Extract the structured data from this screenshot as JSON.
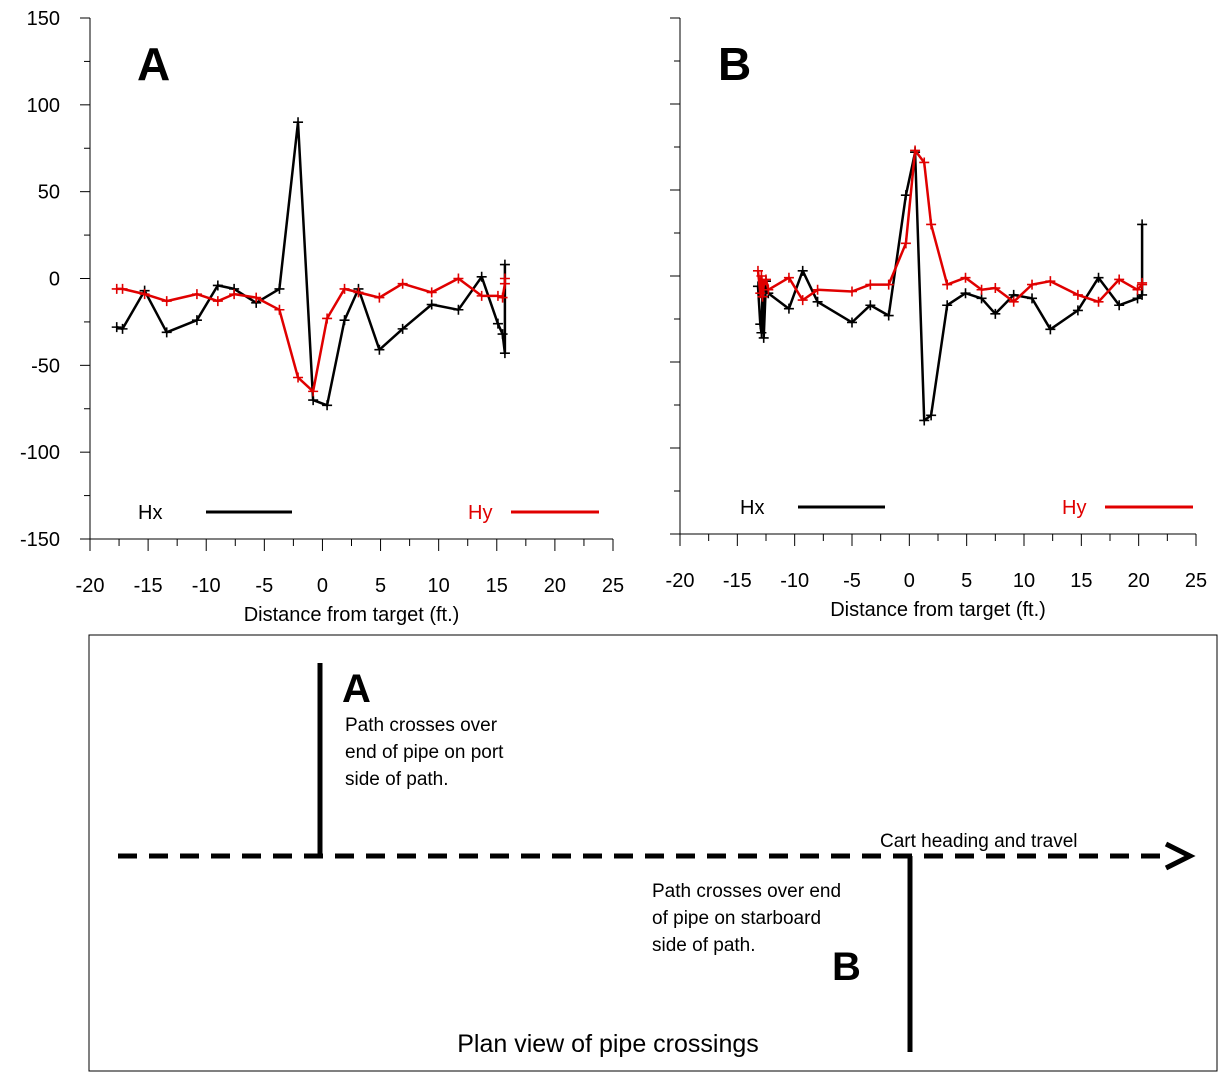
{
  "colors": {
    "Hx": "#000000",
    "Hy": "#e00000",
    "background": "#ffffff"
  },
  "chart_data": [
    {
      "type": "line",
      "panel_label": "A",
      "xlabel": "Distance from target (ft.)",
      "ylabel": "",
      "xlim": [
        -20,
        25
      ],
      "ylim": [
        -150,
        150
      ],
      "xticks": [
        -20,
        -15,
        -10,
        -5,
        0,
        5,
        10,
        15,
        20,
        25
      ],
      "yticks": [
        -150,
        -100,
        -50,
        0,
        50,
        100,
        150
      ],
      "grid": false,
      "legend_placement": "bottom",
      "series": [
        {
          "name": "Hx",
          "color": "#000000",
          "x": [
            -17.7,
            -17.2,
            -15.3,
            -13.4,
            -10.8,
            -9.0,
            -7.6,
            -5.7,
            -3.7,
            -2.1,
            -0.8,
            0.4,
            1.9,
            3.1,
            4.9,
            6.9,
            9.4,
            11.7,
            13.7,
            15.1,
            15.5,
            15.7,
            15.7
          ],
          "y": [
            -28,
            -29,
            -7,
            -31,
            -24,
            -4,
            -6,
            -14,
            -6,
            90,
            -70,
            -73,
            -24,
            -6,
            -41,
            -29,
            -15,
            -18,
            1,
            -26,
            -32,
            -43,
            8
          ]
        },
        {
          "name": "Hy",
          "color": "#e00000",
          "x": [
            -17.7,
            -17.2,
            -15.3,
            -13.4,
            -10.8,
            -9.0,
            -7.6,
            -5.7,
            -3.7,
            -2.1,
            -0.8,
            0.4,
            1.9,
            3.1,
            4.9,
            6.9,
            9.4,
            11.7,
            13.7,
            15.1,
            15.5,
            15.7,
            15.7
          ],
          "y": [
            -6,
            -6,
            -9,
            -13,
            -9,
            -13,
            -9,
            -11,
            -18,
            -57,
            -65,
            -23,
            -6,
            -8,
            -11,
            -3,
            -8,
            0,
            -10,
            -10,
            -11,
            -3,
            0
          ]
        }
      ]
    },
    {
      "type": "line",
      "panel_label": "B",
      "xlabel": "Distance from target (ft.)",
      "ylabel": "",
      "xlim": [
        -20,
        25
      ],
      "ylim": [
        -150,
        150
      ],
      "xticks": [
        -20,
        -15,
        -10,
        -5,
        0,
        5,
        10,
        15,
        20,
        25
      ],
      "yticks": [
        -150,
        -100,
        -50,
        0,
        50,
        100,
        150
      ],
      "grid": false,
      "legend_placement": "bottom",
      "series": [
        {
          "name": "Hx",
          "color": "#000000",
          "x": [
            -13.2,
            -13.0,
            -12.9,
            -12.8,
            -12.7,
            -12.5,
            -12.3,
            -10.5,
            -9.3,
            -8.0,
            -5.0,
            -3.4,
            -1.8,
            -0.3,
            0.5,
            1.3,
            1.9,
            3.3,
            4.9,
            6.3,
            7.5,
            9.1,
            10.7,
            12.3,
            14.7,
            16.5,
            18.3,
            19.9,
            20.3,
            20.3
          ],
          "y": [
            -6,
            -28,
            -33,
            -8,
            -36,
            -3,
            -10,
            -19,
            3,
            -15,
            -27,
            -17,
            -23,
            47,
            72,
            -84,
            -81,
            -17,
            -10,
            -13,
            -22,
            -11,
            -13,
            -31,
            -20,
            -1,
            -17,
            -13,
            -11,
            30
          ]
        },
        {
          "name": "Hy",
          "color": "#e00000",
          "x": [
            -13.2,
            -13.0,
            -12.9,
            -12.8,
            -12.7,
            -12.5,
            -12.3,
            -10.5,
            -9.3,
            -8.0,
            -5.0,
            -3.4,
            -1.8,
            -0.3,
            0.5,
            1.3,
            1.9,
            3.3,
            4.9,
            6.3,
            7.5,
            9.1,
            10.7,
            12.3,
            14.7,
            16.5,
            18.3,
            19.9,
            20.3,
            20.3
          ],
          "y": [
            3,
            -10,
            0,
            -12,
            -5,
            -2,
            -8,
            -1,
            -14,
            -8,
            -9,
            -5,
            -5,
            19,
            73,
            66,
            30,
            -5,
            -1,
            -8,
            -7,
            -15,
            -5,
            -3,
            -11,
            -15,
            -2,
            -8,
            -5,
            -4
          ]
        }
      ]
    }
  ],
  "plan": {
    "letter_a": "A",
    "note_a": [
      "Path crosses over",
      "end of pipe on port",
      "side of path."
    ],
    "heading": "Cart heading and travel",
    "note_b": [
      "Path crosses over end",
      "of pipe on starboard",
      "side of path."
    ],
    "letter_b": "B",
    "title": "Plan view of pipe crossings"
  }
}
